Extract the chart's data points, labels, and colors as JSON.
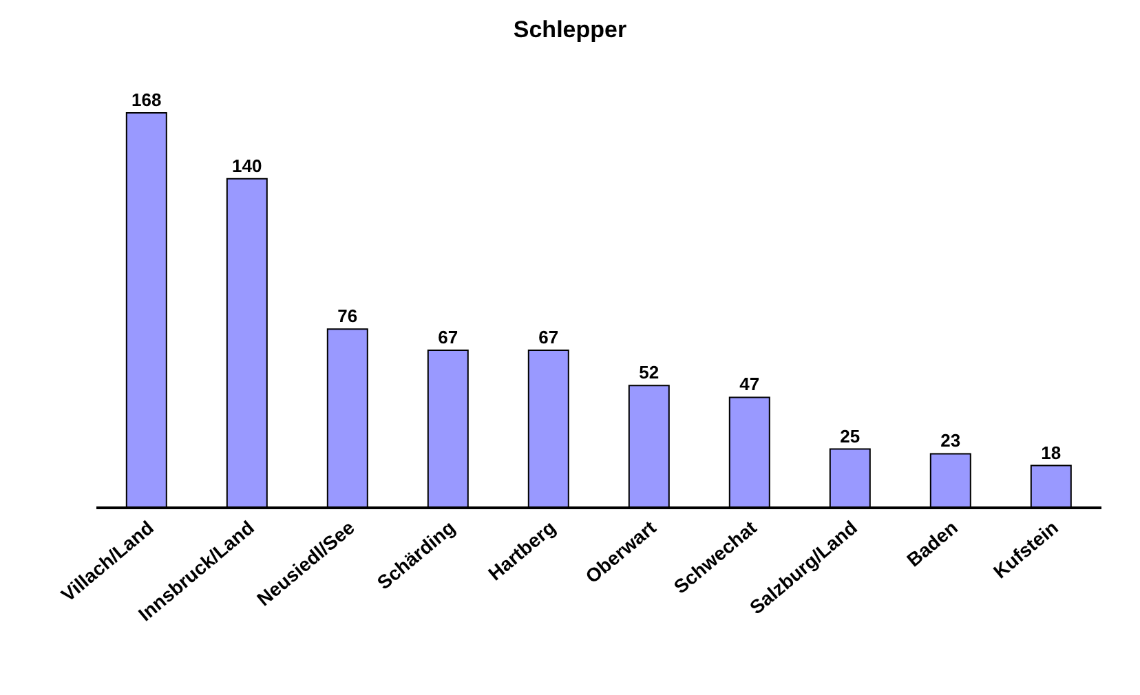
{
  "chart_data": {
    "type": "bar",
    "title": "Schlepper",
    "categories": [
      "Villach/Land",
      "Innsbruck/Land",
      "Neusiedl/See",
      "Schärding",
      "Hartberg",
      "Oberwart",
      "Schwechat",
      "Salzburg/Land",
      "Baden",
      "Kufstein"
    ],
    "values": [
      168,
      140,
      76,
      67,
      67,
      52,
      47,
      25,
      23,
      18
    ],
    "color": "#9999ff",
    "data_labels": true
  }
}
